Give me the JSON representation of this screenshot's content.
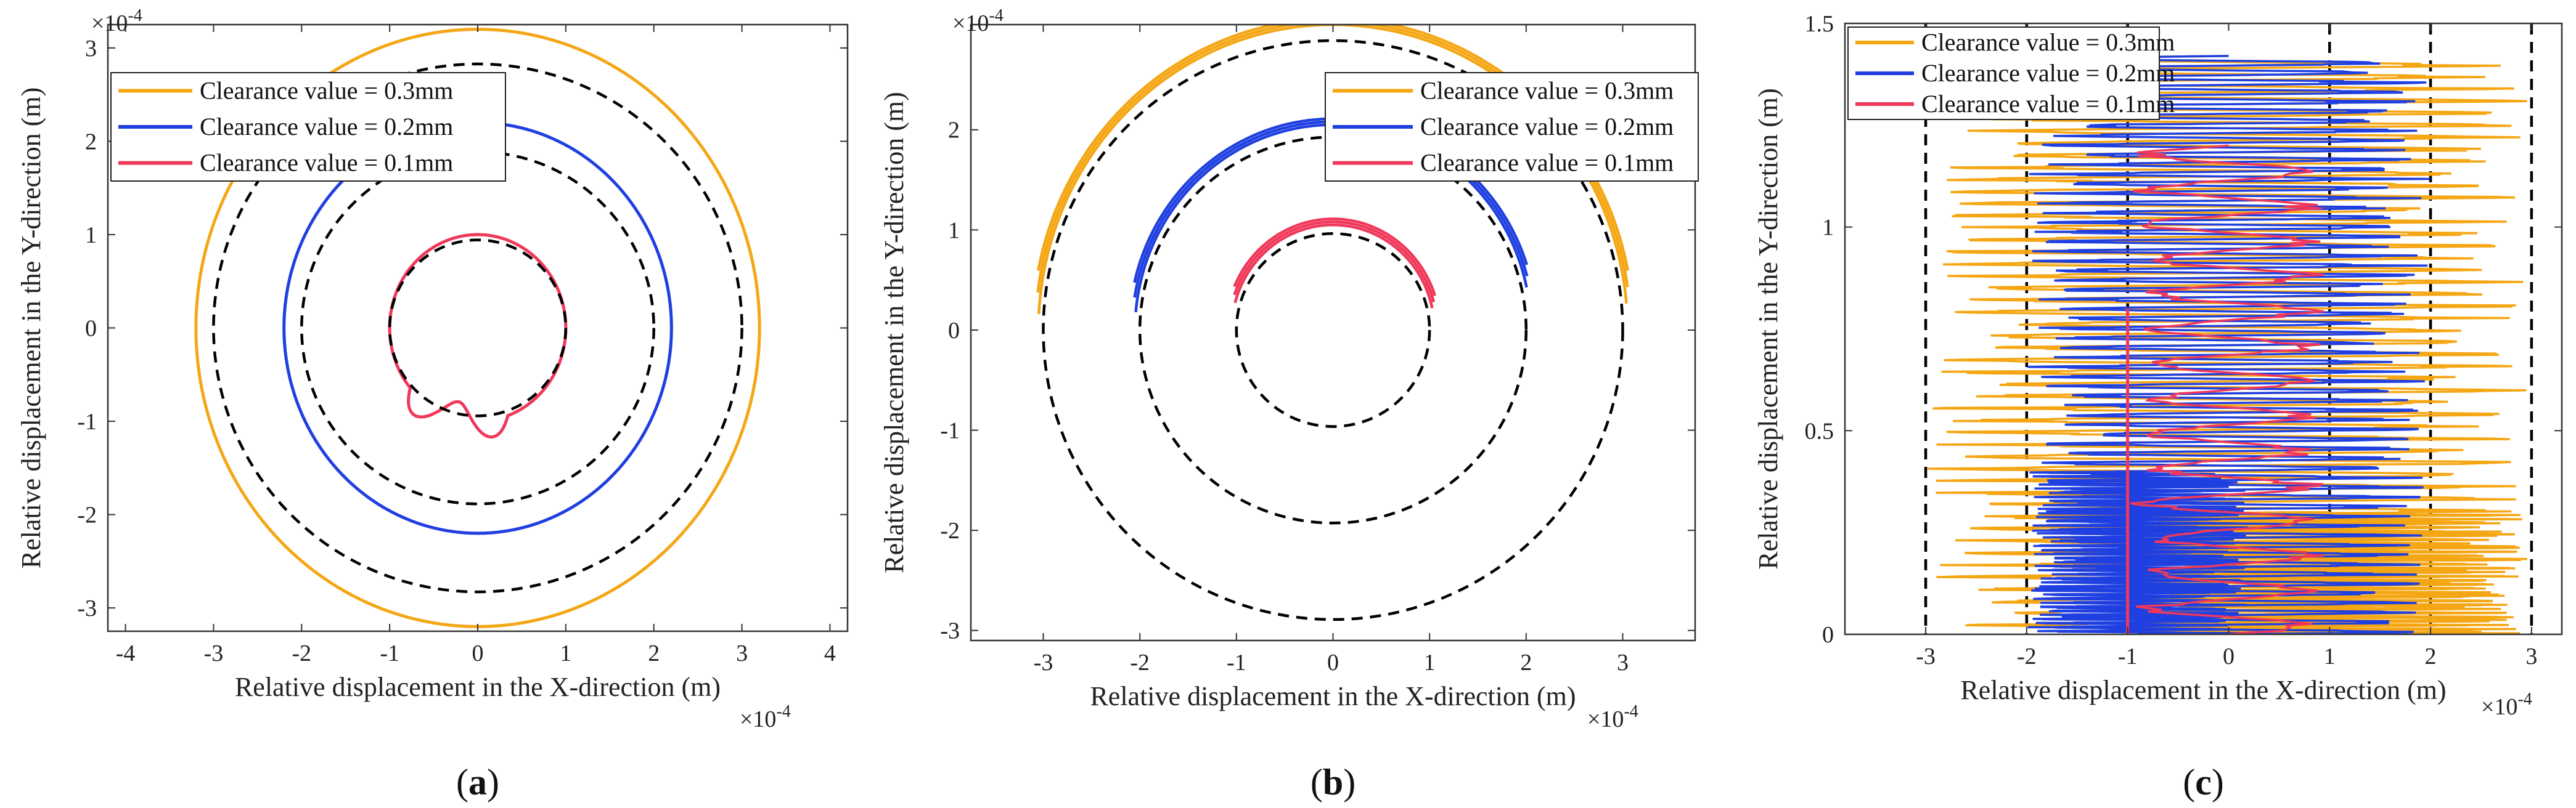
{
  "colors": {
    "c03": "#F5A614",
    "c02": "#1F3FE0",
    "c01": "#F0385A",
    "ref": "#000000"
  },
  "chart_data": [
    {
      "type": "line",
      "panel": "(a)",
      "panel_letter": "a",
      "xlabel": "Relative displacement in the X-direction (m)",
      "ylabel": "Relative displacement in the Y-direction (m)",
      "sci_x": "×10",
      "sci_y": "×10",
      "sci_exp": "-4",
      "xlim": [
        -4.2,
        4.2
      ],
      "ylim": [
        -3.25,
        3.25
      ],
      "xticks": [
        -4,
        -3,
        -2,
        -1,
        0,
        1,
        2,
        3,
        4
      ],
      "yticks": [
        -3,
        -2,
        -1,
        0,
        1,
        2,
        3
      ],
      "reference_circles": [
        1,
        2,
        3
      ],
      "legend_position": "top-left",
      "series": [
        {
          "name": "Clearance value = 0.3mm",
          "color_key": "c03",
          "radius": 3.2
        },
        {
          "name": "Clearance value = 0.2mm",
          "color_key": "c02",
          "radius": 2.2
        },
        {
          "name": "Clearance value = 0.1mm",
          "color_key": "c01",
          "radius": 1.0
        }
      ]
    },
    {
      "type": "line",
      "panel": "(b)",
      "panel_letter": "b",
      "xlabel": "Relative displacement in the X-direction (m)",
      "ylabel": "Relative displacement in the Y-direction (m)",
      "sci_x": "×10",
      "sci_y": "×10",
      "sci_exp": "-4",
      "xlim": [
        -3.75,
        3.75
      ],
      "ylim": [
        -3.1,
        3.05
      ],
      "xticks": [
        -3,
        -2,
        -1,
        0,
        1,
        2,
        3
      ],
      "yticks": [
        -3,
        -2,
        -1,
        0,
        1,
        2
      ],
      "reference_circles": [
        1,
        2,
        3
      ],
      "legend_position": "top-right",
      "series": [
        {
          "name": "Clearance value = 0.3mm",
          "color_key": "c03",
          "radius": 3.05,
          "arc_deg": [
            183,
            355
          ]
        },
        {
          "name": "Clearance value = 0.2mm",
          "color_key": "c02",
          "radius": 2.05,
          "arc_deg": [
            185,
            348
          ]
        },
        {
          "name": "Clearance value = 0.1mm",
          "color_key": "c01",
          "radius": 1.05,
          "arc_deg": [
            195,
            348
          ]
        }
      ]
    },
    {
      "type": "line",
      "panel": "(c)",
      "panel_letter": "c",
      "xlabel": "Relative displacement in the X-direction (m)",
      "ylabel": "Relative displacement in the Y-direction (m)",
      "sci_x": "×10",
      "sci_exp": "-4",
      "xlim": [
        -3.8,
        3.3
      ],
      "ylim": [
        0,
        1.5
      ],
      "xticks": [
        -3,
        -2,
        -1,
        0,
        1,
        2,
        3
      ],
      "yticks": [
        0,
        0.5,
        1,
        1.5
      ],
      "reference_lines_x": [
        -3,
        -2,
        -1,
        1,
        2,
        3
      ],
      "legend_position": "top-left",
      "series": [
        {
          "name": "Clearance value = 0.3mm",
          "color_key": "c03",
          "x_range": [
            -3,
            3
          ]
        },
        {
          "name": "Clearance value = 0.2mm",
          "color_key": "c02",
          "x_range": [
            -2,
            2
          ]
        },
        {
          "name": "Clearance value = 0.1mm",
          "color_key": "c01",
          "x_range": [
            -1,
            1
          ]
        }
      ]
    }
  ]
}
